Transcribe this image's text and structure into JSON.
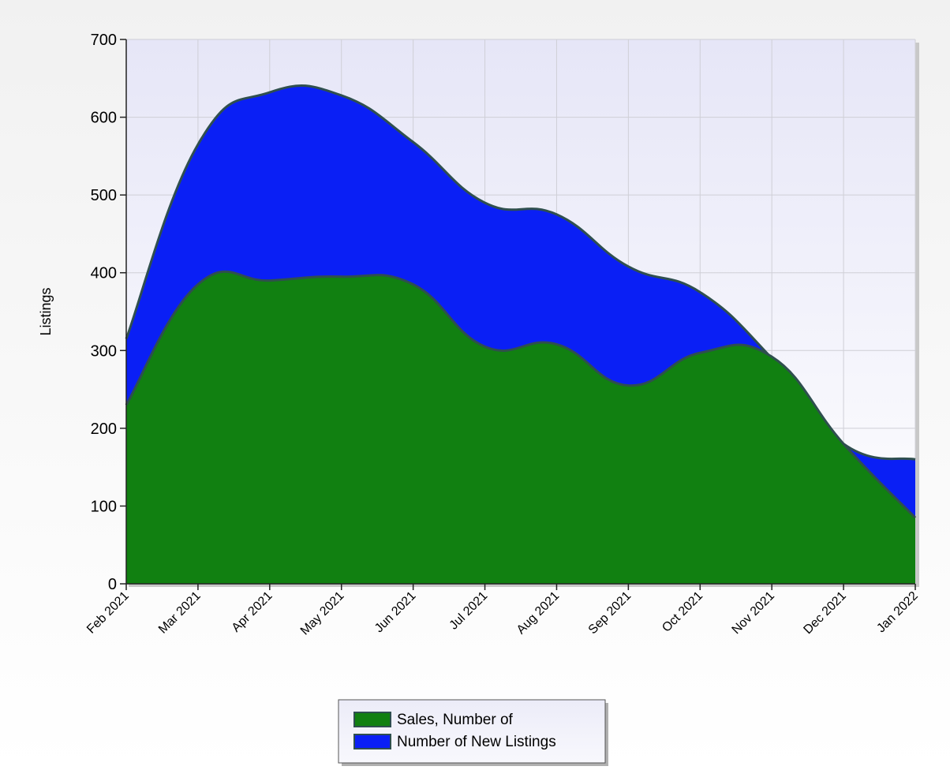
{
  "chart_data": {
    "type": "area",
    "stacked": false,
    "smooth": true,
    "categories": [
      "Feb 2021",
      "Mar 2021",
      "Apr 2021",
      "May 2021",
      "Jun 2021",
      "Jul 2021",
      "Aug 2021",
      "Sep 2021",
      "Oct 2021",
      "Nov 2021",
      "Dec 2021",
      "Jan 2022"
    ],
    "series": [
      {
        "name": "Number of New Listings",
        "color": "#0a1ff5",
        "values": [
          315,
          565,
          632,
          628,
          568,
          490,
          475,
          408,
          375,
          290,
          180,
          160
        ]
      },
      {
        "name": "Sales, Number of",
        "color": "#118011",
        "values": [
          230,
          385,
          390,
          395,
          385,
          305,
          308,
          255,
          297,
          292,
          180,
          85
        ]
      }
    ],
    "title": "",
    "xlabel": "",
    "ylabel": "Listings",
    "ylim": [
      0,
      700
    ],
    "yticks": [
      0,
      100,
      200,
      300,
      400,
      500,
      600,
      700
    ],
    "grid": true,
    "legend": {
      "position": "bottom-center",
      "entries": [
        {
          "label": "Sales, Number of",
          "color": "#118011"
        },
        {
          "label": "Number of New Listings",
          "color": "#0a1ff5"
        }
      ]
    },
    "plot_background": "#e8e8f8",
    "outline_color": "#2f4f4f"
  }
}
